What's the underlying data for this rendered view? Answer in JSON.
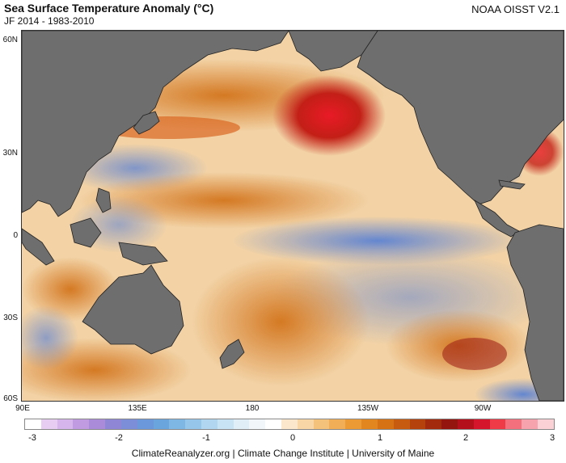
{
  "header": {
    "title": "Sea Surface Temperature Anomaly (°C)",
    "subtitle": "JF 2014 - 1983-2010",
    "source": "NOAA OISST V2.1"
  },
  "map": {
    "lat_labels": [
      "60N",
      "30N",
      "0",
      "30S",
      "60S"
    ],
    "lon_labels": [
      "90E",
      "135E",
      "180",
      "135W",
      "90W"
    ],
    "land_color": "#6e6e6e",
    "ocean_base_color": "#f5e2c8"
  },
  "colorbar": {
    "ticks": [
      "-3",
      "-2",
      "-1",
      "0",
      "1",
      "2",
      "3"
    ],
    "colors": [
      "#ffffff",
      "#e7cdf2",
      "#d6b5ec",
      "#c19be2",
      "#a98bda",
      "#8f86d6",
      "#7c8ed8",
      "#6b98da",
      "#6aa6dd",
      "#7eb7e3",
      "#96c7ea",
      "#b0d6f0",
      "#c8e3f4",
      "#e0eef8",
      "#f1f6fb",
      "#ffffff",
      "#fbe8cc",
      "#f8d6a6",
      "#f5c27c",
      "#f1ae57",
      "#eb9a34",
      "#e2861f",
      "#d67214",
      "#c75b10",
      "#b5420d",
      "#a32a0c",
      "#94150f",
      "#b4101b",
      "#d4152b",
      "#ef3b48",
      "#f4707d",
      "#f7a3ad",
      "#fbd1d6"
    ]
  },
  "footer": {
    "credit": "ClimateReanalyzer.org | Climate Change Institute | University of Maine"
  }
}
